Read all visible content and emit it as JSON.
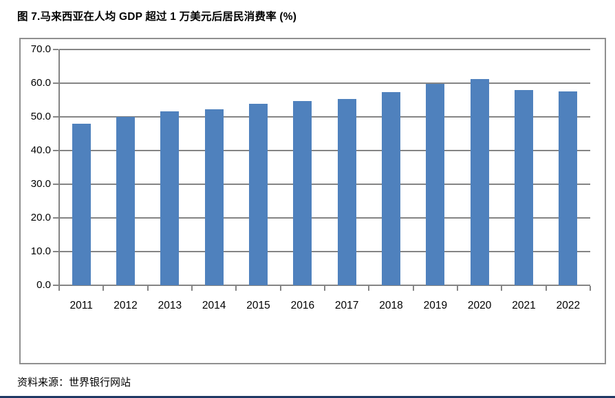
{
  "page": {
    "title": "图 7.马来西亚在人均 GDP 超过 1 万美元后居民消费率 (%)",
    "source": "资料来源：世界银行网站"
  },
  "colors": {
    "bar": "#4F81BD",
    "grid": "#848484",
    "axis": "#848484",
    "box_border": "#8f8f8f",
    "text": "#000000",
    "footer_rule": "#1F3864"
  },
  "chart_data": {
    "type": "bar",
    "title": "图 7.马来西亚在人均 GDP 超过 1 万美元后居民消费率 (%)",
    "source": "资料来源：世界银行网站",
    "categories": [
      "2011",
      "2012",
      "2013",
      "2014",
      "2015",
      "2016",
      "2017",
      "2018",
      "2019",
      "2020",
      "2021",
      "2022"
    ],
    "values": [
      47.9,
      49.9,
      51.6,
      52.3,
      53.9,
      54.7,
      55.3,
      57.3,
      59.8,
      61.2,
      57.9,
      57.5
    ],
    "xlabel": "",
    "ylabel": "",
    "ylim": [
      0,
      70
    ],
    "ytick_step": 10,
    "ytick_labels": [
      "0.0",
      "10.0",
      "20.0",
      "30.0",
      "40.0",
      "50.0",
      "60.0",
      "70.0"
    ],
    "grid": true,
    "legend_position": "none",
    "bar_color": "#4F81BD"
  }
}
